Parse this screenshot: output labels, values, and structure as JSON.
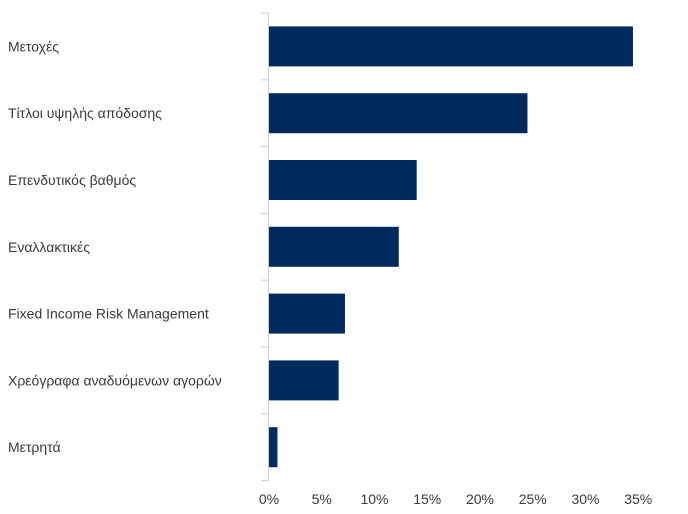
{
  "chart_data": {
    "type": "bar",
    "orientation": "horizontal",
    "title": "",
    "xlabel": "",
    "ylabel": "",
    "categories": [
      "Μετοχές",
      "Τίτλοι υψηλής απόδοσης",
      "Επενδυτικός βαθμός",
      "Εναλλακτικές",
      "Fixed Income Risk Management",
      "Χρεόγραφα αναδυόμενων αγορών",
      "Μετρητά"
    ],
    "series": [
      {
        "values": [
          34.5,
          24.5,
          14.0,
          12.3,
          7.2,
          6.6,
          0.8
        ],
        "color": "#002b5c"
      }
    ],
    "xlim": [
      0,
      40
    ],
    "ticks": [
      "0%",
      "5%",
      "10%",
      "15%",
      "20%",
      "25%",
      "30%",
      "35%"
    ],
    "tick_values": [
      0,
      5,
      10,
      15,
      20,
      25,
      30,
      35
    ],
    "grid": false,
    "legend": "none",
    "bar_color": "#002b5c",
    "axis_color": "#c8d0dc"
  }
}
